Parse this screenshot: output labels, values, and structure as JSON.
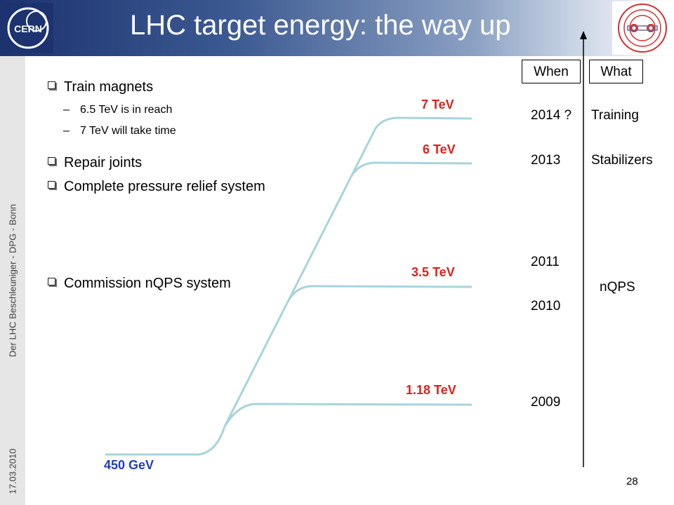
{
  "slide": {
    "title": "LHC target energy: the way up",
    "page_number": "28",
    "sidebar_text": "Der LHC Beschleuniger - DPG - Bonn",
    "date": "17.03.2010"
  },
  "logos": {
    "cern_text": "CERN"
  },
  "bullets": [
    {
      "text": "Train magnets",
      "subitems": [
        "6.5 TeV is in reach",
        "7 TeV will take time"
      ]
    },
    {
      "text": "Repair joints"
    },
    {
      "text": "Complete pressure relief system"
    },
    {
      "text": "Commission nQPS system"
    }
  ],
  "energy_levels": [
    "450 GeV",
    "1.18 TeV",
    "3.5 TeV",
    "6 TeV",
    "7 TeV"
  ],
  "timeline": {
    "when_header": "When",
    "what_header": "What",
    "years": [
      "2014 ?",
      "2013",
      "2011",
      "2010",
      "2009"
    ],
    "what_items": [
      "Training",
      "Stabilizers",
      "nQPS"
    ]
  },
  "colors": {
    "header_dark": "#1c3370",
    "curve": "#a8d4dc",
    "energy_red": "#e0201b",
    "energy_blue": "#1f3fbf",
    "sidebar": "#e6e6e6"
  }
}
